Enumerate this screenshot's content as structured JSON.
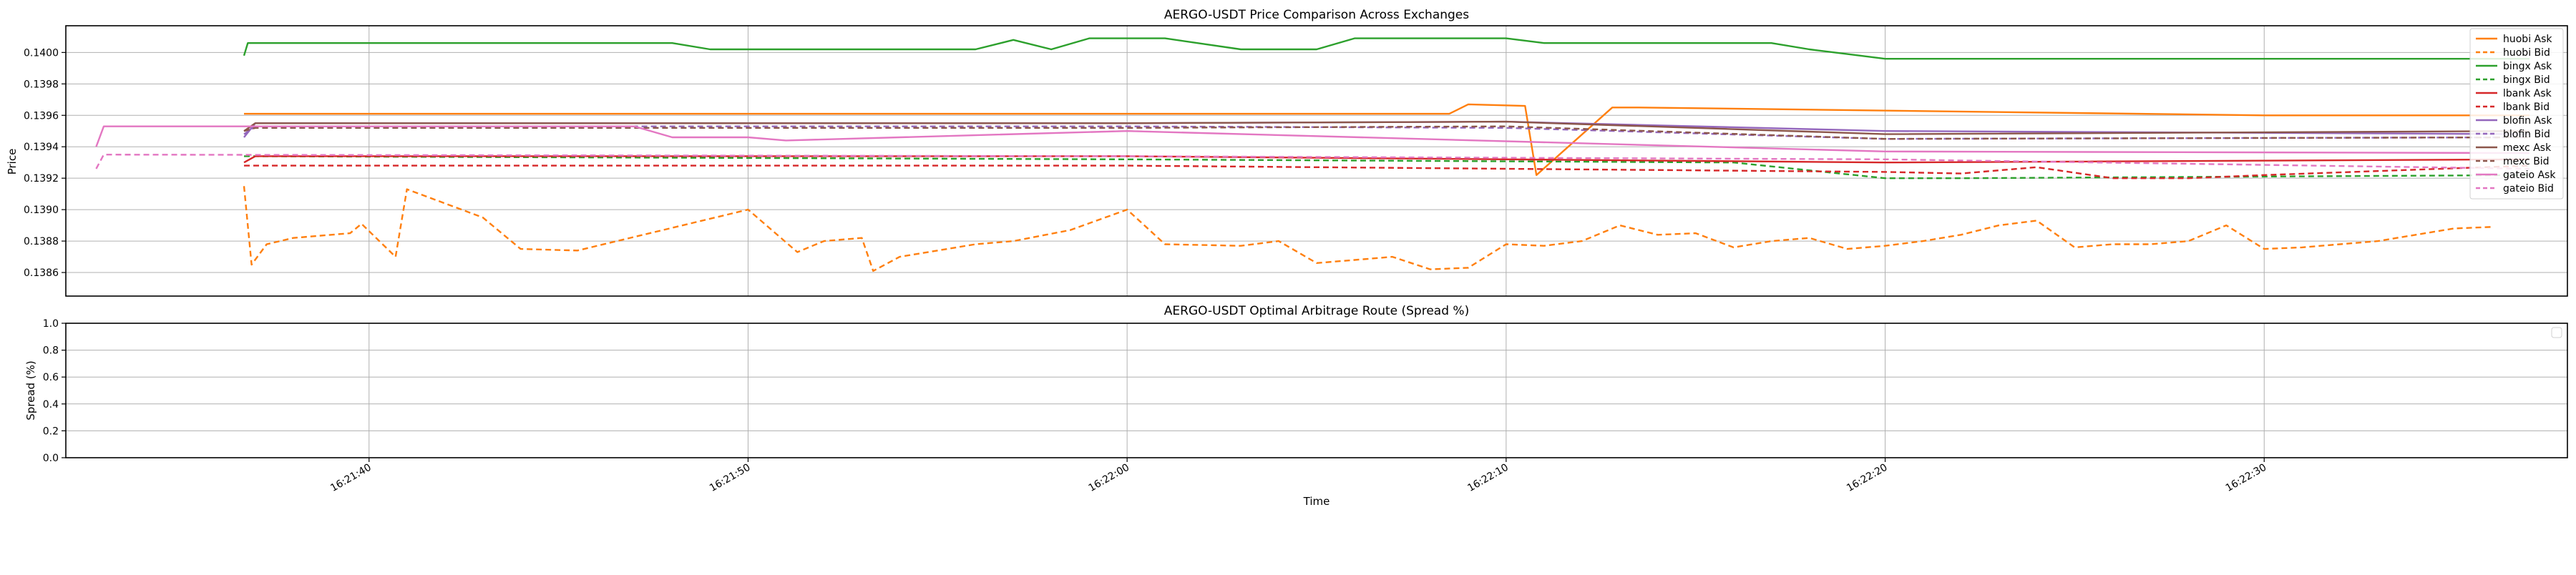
{
  "chart_data": [
    {
      "type": "line",
      "title": "AERGO-USDT Price Comparison Across Exchanges",
      "xlabel": "",
      "ylabel": "Price",
      "xlim": [
        "16:21:32",
        "16:22:38"
      ],
      "ylim": [
        0.13845,
        0.14017
      ],
      "yticks": [
        "0.1386",
        "0.1388",
        "0.1390",
        "0.1392",
        "0.1394",
        "0.1396",
        "0.1398",
        "0.1400"
      ],
      "grid": true,
      "legend": "right",
      "series": [
        {
          "name": "huobi Ask",
          "color": "#ff7f0e",
          "dash": "solid",
          "x": [
            "16:21:36.7",
            "16:21:37",
            "16:22:00",
            "16:22:08.5",
            "16:22:09",
            "16:22:10.5",
            "16:22:10.8",
            "16:22:12.8",
            "16:22:13.5",
            "16:22:30",
            "16:22:37"
          ],
          "y": [
            0.13961,
            0.13961,
            0.13961,
            0.13961,
            0.13967,
            0.13966,
            0.13922,
            0.13965,
            0.13965,
            0.1396,
            0.1396
          ]
        },
        {
          "name": "huobi Bid",
          "color": "#ff7f0e",
          "dash": "dash",
          "x": [
            "16:21:36.7",
            "16:21:36.9",
            "16:21:37.3",
            "16:21:38",
            "16:21:39.5",
            "16:21:39.8",
            "16:21:40.7",
            "16:21:41",
            "16:21:43",
            "16:21:44",
            "16:21:45.5",
            "16:21:50",
            "16:21:51.3",
            "16:21:52",
            "16:21:53",
            "16:21:53.3",
            "16:21:54",
            "16:21:56",
            "16:21:57",
            "16:21:58.5",
            "16:22:00",
            "16:22:01",
            "16:22:03",
            "16:22:04",
            "16:22:05",
            "16:22:06",
            "16:22:07",
            "16:22:08",
            "16:22:09",
            "16:22:10",
            "16:22:11",
            "16:22:12",
            "16:22:13",
            "16:22:14",
            "16:22:15",
            "16:22:16",
            "16:22:17",
            "16:22:18",
            "16:22:19",
            "16:22:20",
            "16:22:21",
            "16:22:22",
            "16:22:23",
            "16:22:24",
            "16:22:25",
            "16:22:26",
            "16:22:27",
            "16:22:28",
            "16:22:29",
            "16:22:30",
            "16:22:31",
            "16:22:32",
            "16:22:33",
            "16:22:34",
            "16:22:35",
            "16:22:36"
          ],
          "y": [
            0.13915,
            0.13865,
            0.13878,
            0.13882,
            0.13885,
            0.13891,
            0.1387,
            0.13913,
            0.13895,
            0.13875,
            0.13874,
            0.139,
            0.13873,
            0.1388,
            0.13882,
            0.13861,
            0.1387,
            0.13878,
            0.1388,
            0.13887,
            0.139,
            0.13878,
            0.13877,
            0.1388,
            0.13866,
            0.13868,
            0.1387,
            0.13862,
            0.13863,
            0.13878,
            0.13877,
            0.1388,
            0.1389,
            0.13884,
            0.13885,
            0.13876,
            0.1388,
            0.13882,
            0.13875,
            0.13877,
            0.1388,
            0.13884,
            0.1389,
            0.13893,
            0.13876,
            0.13878,
            0.13878,
            0.1388,
            0.1389,
            0.13875,
            0.13876,
            0.13878,
            0.1388,
            0.13884,
            0.13888,
            0.13889
          ]
        },
        {
          "name": "bingx Ask",
          "color": "#2ca02c",
          "dash": "solid",
          "x": [
            "16:21:36.7",
            "16:21:36.8",
            "16:21:48",
            "16:21:49",
            "16:21:56",
            "16:21:57",
            "16:21:58",
            "16:21:59",
            "16:22:01",
            "16:22:03",
            "16:22:05",
            "16:22:06",
            "16:22:10",
            "16:22:11",
            "16:22:17",
            "16:22:18",
            "16:22:19",
            "16:22:20",
            "16:22:37"
          ],
          "y": [
            0.13998,
            0.14006,
            0.14006,
            0.14002,
            0.14002,
            0.14008,
            0.14002,
            0.14009,
            0.14009,
            0.14002,
            0.14002,
            0.14009,
            0.14009,
            0.14006,
            0.14006,
            0.14002,
            0.13999,
            0.13996,
            0.13996
          ]
        },
        {
          "name": "bingx Bid",
          "color": "#2ca02c",
          "dash": "dash",
          "x": [
            "16:21:36.7",
            "16:22:00",
            "16:22:16",
            "16:22:20",
            "16:22:22",
            "16:22:37"
          ],
          "y": [
            0.13934,
            0.13932,
            0.1393,
            0.1392,
            0.1392,
            0.13922
          ]
        },
        {
          "name": "lbank Ask",
          "color": "#d62728",
          "dash": "solid",
          "x": [
            "16:21:36.7",
            "16:21:37",
            "16:22:00",
            "16:22:20",
            "16:22:37"
          ],
          "y": [
            0.1393,
            0.13934,
            0.13934,
            0.1393,
            0.13932
          ]
        },
        {
          "name": "lbank Bid",
          "color": "#d62728",
          "dash": "dash",
          "x": [
            "16:21:36.7",
            "16:21:37",
            "16:22:00",
            "16:22:20",
            "16:22:22",
            "16:22:24",
            "16:22:26",
            "16:22:28",
            "16:22:30",
            "16:22:37"
          ],
          "y": [
            0.13928,
            0.13928,
            0.13928,
            0.13924,
            0.13923,
            0.13927,
            0.1392,
            0.1392,
            0.13922,
            0.13928
          ]
        },
        {
          "name": "blofin Ask",
          "color": "#9467bd",
          "dash": "solid",
          "x": [
            "16:21:36.7",
            "16:21:37",
            "16:22:00",
            "16:22:10",
            "16:22:20",
            "16:22:37"
          ],
          "y": [
            0.13946,
            0.13955,
            0.13955,
            0.13956,
            0.1395,
            0.13948
          ]
        },
        {
          "name": "blofin Bid",
          "color": "#9467bd",
          "dash": "dash",
          "x": [
            "16:21:36.7",
            "16:21:37",
            "16:22:00",
            "16:22:10",
            "16:22:20",
            "16:22:37"
          ],
          "y": [
            0.13948,
            0.13953,
            0.13953,
            0.13952,
            0.13945,
            0.13946
          ]
        },
        {
          "name": "mexc Ask",
          "color": "#8c564b",
          "dash": "solid",
          "x": [
            "16:21:36.7",
            "16:21:37",
            "16:22:00",
            "16:22:10",
            "16:22:20",
            "16:22:37"
          ],
          "y": [
            0.1395,
            0.13955,
            0.13955,
            0.13956,
            0.13948,
            0.1395
          ]
        },
        {
          "name": "mexc Bid",
          "color": "#8c564b",
          "dash": "dash",
          "x": [
            "16:21:36.7",
            "16:21:37",
            "16:22:00",
            "16:22:10",
            "16:22:20",
            "16:22:37"
          ],
          "y": [
            0.1395,
            0.13952,
            0.13952,
            0.13953,
            0.13945,
            0.13946
          ]
        },
        {
          "name": "gateio Ask",
          "color": "#e377c2",
          "dash": "solid",
          "x": [
            "16:21:32.8",
            "16:21:33",
            "16:21:47",
            "16:21:48",
            "16:21:50",
            "16:21:51",
            "16:22:00",
            "16:22:20",
            "16:22:37"
          ],
          "y": [
            0.1394,
            0.13953,
            0.13953,
            0.13946,
            0.13946,
            0.13944,
            0.1395,
            0.13937,
            0.13936
          ]
        },
        {
          "name": "gateio Bid",
          "color": "#e377c2",
          "dash": "dash",
          "x": [
            "16:21:32.8",
            "16:21:33",
            "16:22:00",
            "16:22:20",
            "16:22:37"
          ],
          "y": [
            0.13926,
            0.13935,
            0.13934,
            0.13932,
            0.13926
          ]
        }
      ]
    },
    {
      "type": "line",
      "title": "AERGO-USDT Optimal Arbitrage Route (Spread %)",
      "xlabel": "Time",
      "ylabel": "Spread (%)",
      "xlim": [
        "16:21:32",
        "16:22:38"
      ],
      "ylim": [
        0.0,
        1.0
      ],
      "yticks": [
        "0.0",
        "0.2",
        "0.4",
        "0.6",
        "0.8",
        "1.0"
      ],
      "xticks": [
        "16:21:40",
        "16:21:50",
        "16:22:00",
        "16:22:10",
        "16:22:20",
        "16:22:30"
      ],
      "grid": true,
      "legend": "top-right",
      "series": []
    }
  ]
}
